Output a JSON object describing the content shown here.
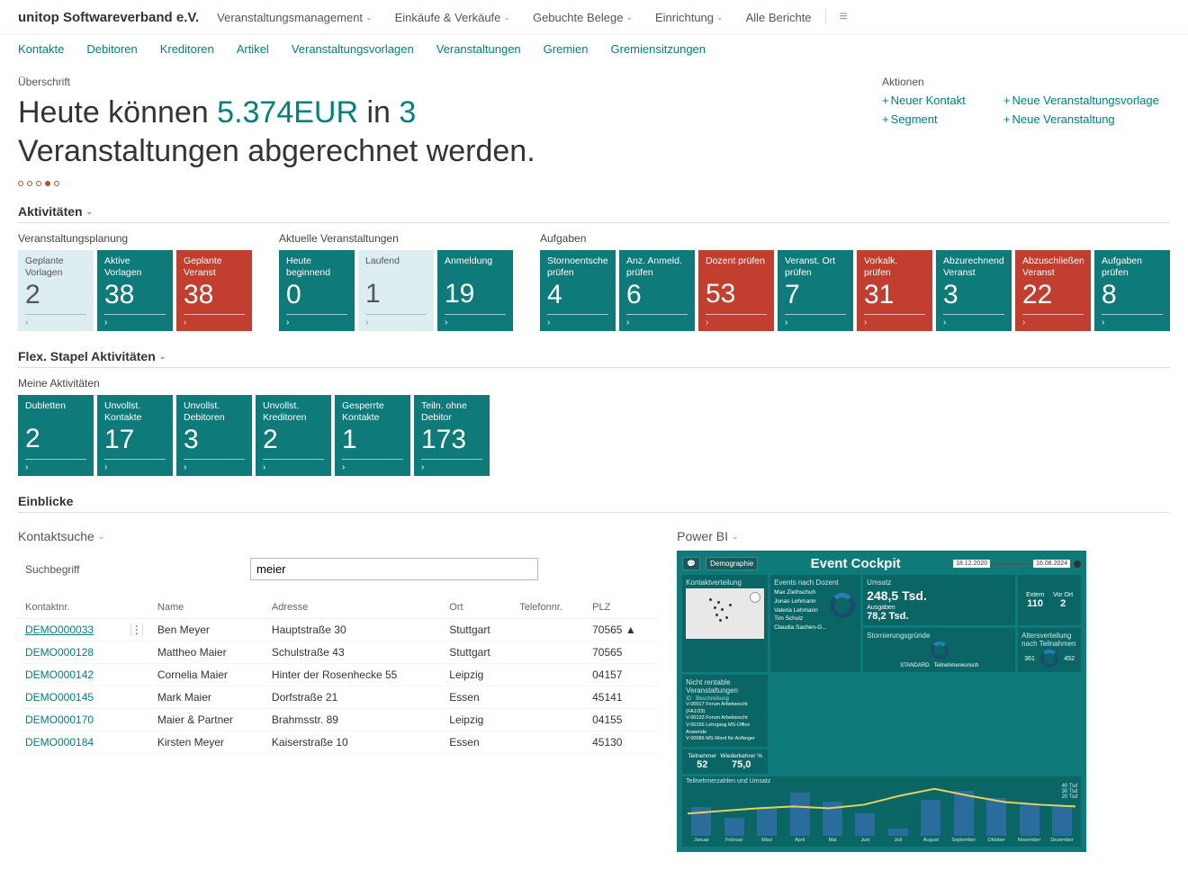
{
  "brand": "unitop Softwareverband e.V.",
  "topnav": [
    {
      "label": "Veranstaltungsmanagement",
      "drop": true
    },
    {
      "label": "Einkäufe & Verkäufe",
      "drop": true
    },
    {
      "label": "Gebuchte Belege",
      "drop": true
    },
    {
      "label": "Einrichtung",
      "drop": true
    },
    {
      "label": "Alle Berichte",
      "drop": false
    }
  ],
  "subnav": [
    "Kontakte",
    "Debitoren",
    "Kreditoren",
    "Artikel",
    "Veranstaltungsvorlagen",
    "Veranstaltungen",
    "Gremien",
    "Gremiensitzungen"
  ],
  "headline_label": "Überschrift",
  "headline_pre": "Heute können ",
  "headline_amount": "5.374EUR",
  "headline_mid": " in ",
  "headline_count": "3",
  "headline_post": " Veranstaltungen abgerechnet werden.",
  "pager_total": 5,
  "pager_active": 3,
  "actions_label": "Aktionen",
  "actions": [
    {
      "label": "Neuer Kontakt"
    },
    {
      "label": "Neue Veranstaltungsvorlage"
    },
    {
      "label": "Segment"
    },
    {
      "label": "Neue Veranstaltung"
    }
  ],
  "section_activities": "Aktivitäten",
  "tile_groups_1": [
    {
      "label": "Veranstaltungsplanung",
      "tiles": [
        {
          "label": "Geplante Vorlagen",
          "value": "2",
          "variant": "paleblue"
        },
        {
          "label": "Aktive Vorlagen",
          "value": "38",
          "variant": "teal"
        },
        {
          "label": "Geplante Veranst",
          "value": "38",
          "variant": "red"
        }
      ]
    },
    {
      "label": "Aktuelle Veranstaltungen",
      "tiles": [
        {
          "label": "Heute beginnend",
          "value": "0",
          "variant": "teal"
        },
        {
          "label": "Laufend",
          "value": "1",
          "variant": "paleblue"
        },
        {
          "label": "Anmeldung",
          "value": "19",
          "variant": "teal"
        }
      ]
    },
    {
      "label": "Aufgaben",
      "tiles": [
        {
          "label": "Stornoentschei... prüfen",
          "value": "4",
          "variant": "teal"
        },
        {
          "label": "Anz. Anmeld. prüfen",
          "value": "6",
          "variant": "teal"
        },
        {
          "label": "Dozent prüfen",
          "value": "53",
          "variant": "red"
        },
        {
          "label": "Veranst. Ort prüfen",
          "value": "7",
          "variant": "teal"
        },
        {
          "label": "Vorkalk. prüfen",
          "value": "31",
          "variant": "red"
        },
        {
          "label": "Abzurechnende Veranst",
          "value": "3",
          "variant": "teal"
        },
        {
          "label": "Abzuschließen... Veranst",
          "value": "22",
          "variant": "red"
        },
        {
          "label": "Aufgaben prüfen",
          "value": "8",
          "variant": "teal"
        }
      ]
    }
  ],
  "section_flex": "Flex. Stapel Aktivitäten",
  "tile_groups_2": [
    {
      "label": "Meine Aktivitäten",
      "tiles": [
        {
          "label": "Dubletten",
          "value": "2",
          "variant": "teal"
        },
        {
          "label": "Unvollst. Kontakte",
          "value": "17",
          "variant": "teal"
        },
        {
          "label": "Unvollst. Debitoren",
          "value": "3",
          "variant": "teal"
        },
        {
          "label": "Unvollst. Kreditoren",
          "value": "2",
          "variant": "teal"
        },
        {
          "label": "Gesperrte Kontakte",
          "value": "1",
          "variant": "teal"
        },
        {
          "label": "Teiln. ohne Debitor",
          "value": "173",
          "variant": "teal"
        }
      ]
    }
  ],
  "section_insights": "Einblicke",
  "contact_search_title": "Kontaktsuche",
  "search_label": "Suchbegriff",
  "search_value": "meier",
  "contact_columns": [
    "Kontaktnr.",
    "Name",
    "Adresse",
    "Ort",
    "Telefonnr.",
    "PLZ"
  ],
  "contact_rows": [
    {
      "nr": "DEMO000033",
      "name": "Ben Meyer",
      "addr": "Hauptstraße 30",
      "ort": "Stuttgart",
      "tel": "",
      "plz": "70565",
      "selected": true
    },
    {
      "nr": "DEMO000128",
      "name": "Mattheo Maier",
      "addr": "Schulstraße 43",
      "ort": "Stuttgart",
      "tel": "",
      "plz": "70565"
    },
    {
      "nr": "DEMO000142",
      "name": "Cornelia Maier",
      "addr": "Hinter der Rosenhecke 55",
      "ort": "Leipzig",
      "tel": "",
      "plz": "04157"
    },
    {
      "nr": "DEMO000145",
      "name": "Mark Maier",
      "addr": "Dorfstraße 21",
      "ort": "Essen",
      "tel": "",
      "plz": "45141"
    },
    {
      "nr": "DEMO000170",
      "name": "Maier & Partner",
      "addr": "Brahmsstr. 89",
      "ort": "Leipzig",
      "tel": "",
      "plz": "04155"
    },
    {
      "nr": "DEMO000184",
      "name": "Kirsten Meyer",
      "addr": "Kaiserstraße 10",
      "ort": "Essen",
      "tel": "",
      "plz": "45130"
    }
  ],
  "powerbi_title": "Power BI",
  "pbi": {
    "title": "Event Cockpit",
    "btn": "Demographie",
    "date_from": "18.12.2020",
    "date_to": "16.08.2024",
    "cards": {
      "map_title": "Kontaktverteilung",
      "dozent_title": "Events nach Dozent",
      "dozent_names": [
        "Max Ziethschuh",
        "Jonas Lehmann",
        "Valeria Lehmann",
        "Tim Schulz",
        "Claudia Sachen-G..."
      ],
      "umsatz_title": "Umsatz",
      "umsatz_val": "248,5 Tsd.",
      "ausgaben_label": "Ausgaben",
      "ausgaben_val": "78,2 Tsd.",
      "extern_label": "Extern",
      "extern_val": "110",
      "vorort_label": "Vor Ort",
      "vorort_val": "2",
      "teiln_label": "Teilnehmer",
      "teiln_val": "52",
      "wieder_label": "Wiederkehrer %",
      "wieder_val": "75,0",
      "storno_title": "Stornierungsgründe",
      "storno_cat": "STANDARD",
      "storno_sub": "Teilnehmerwunsch",
      "alters_title": "Altersverteilung nach Teilnahmen",
      "alters_labels": [
        "361",
        "452"
      ],
      "rent_title": "Nicht rentable Veranstaltungen",
      "rent_head1": "ID",
      "rent_head2": "Beschreibung",
      "rent_rows": [
        "V-00017  Forum Arbeitsrecht (FA1/23)",
        "V-00133  Forum Arbeitsrecht",
        "V-00156  Lehrgang MS-Office Anwende",
        "V-00086  MS-Word für Anfänger"
      ],
      "chart_title": "Teilnehmerzahlen und Umsatz",
      "months": [
        "Januar",
        "Februar",
        "März",
        "April",
        "Mai",
        "Juni",
        "Juli",
        "August",
        "September",
        "Oktober",
        "November",
        "Dezember"
      ],
      "bars": [
        32,
        20,
        30,
        48,
        38,
        25,
        8,
        40,
        50,
        42,
        35,
        33
      ],
      "line": [
        22,
        25,
        28,
        30,
        28,
        32,
        42,
        50,
        42,
        35,
        32,
        30
      ],
      "y_labels": [
        "40 Tsd",
        "30 Tsd",
        "20 Tsd"
      ]
    }
  },
  "colors": {
    "teal": "#0e7a7a",
    "red": "#c23e2e",
    "paleblue": "#dceef0",
    "link": "#008080"
  }
}
